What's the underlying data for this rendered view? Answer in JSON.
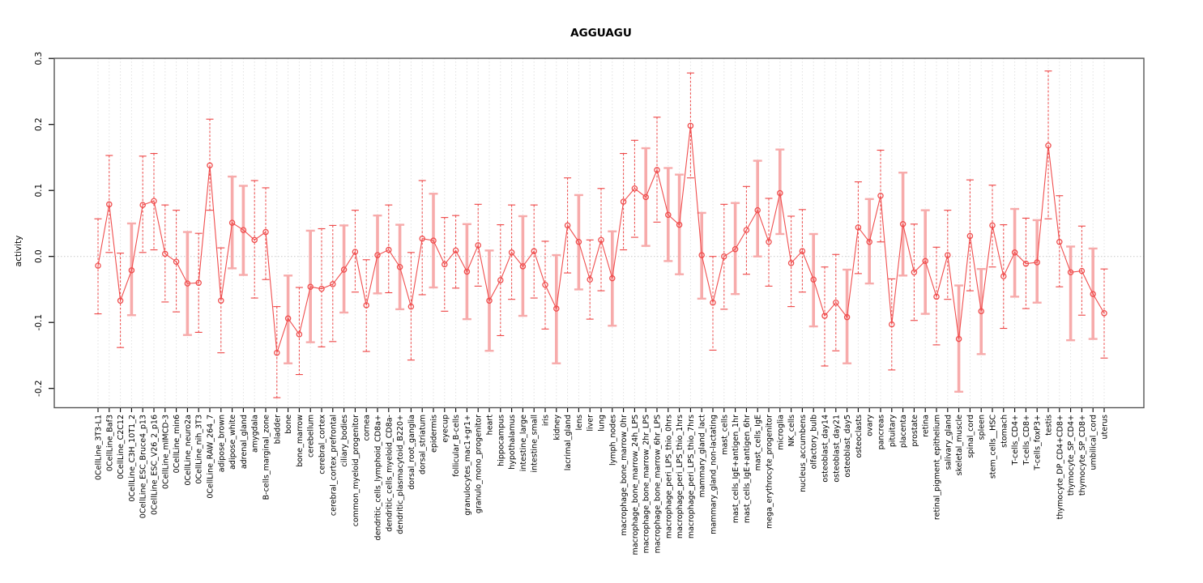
{
  "figure": {
    "title": "AGGUAGU",
    "ylabel": "activity"
  },
  "chart_data": {
    "type": "scatter",
    "subtype": "points-with-error-bars",
    "title": "AGGUAGU",
    "xlabel": "",
    "ylabel": "activity",
    "ylim": [
      -0.227,
      0.302
    ],
    "yticks": [
      0.3,
      0.2,
      0.1,
      0.0,
      -0.1,
      -0.2
    ],
    "ytick_labels": [
      "0.3",
      "0.2",
      "0.1",
      "0.0",
      "-0.1",
      "-0.2"
    ],
    "grid": "vertical dotted gridline at every category; dotted horizontal zero line",
    "legend_position": "none",
    "colors": {
      "point": "#f04e4e",
      "line": "#f04e4e",
      "errorbar_thin": "#ee4444",
      "errorbar_thick": "#f7abab",
      "gridline": "#e2e2e2",
      "zero_line": "#c8c8c8",
      "axis_box": "#555555",
      "text": "#000000"
    },
    "categories": [
      "0CellLine_3T3-L1",
      "0CellLine_Baf3",
      "0CellLine_C2C12",
      "0CellLine_C3H_10T1_2",
      "0CellLine_ESC_Bruce4_p13",
      "0CellLine_ESC_V26_2_p16",
      "0CellLine_mIMCD-3",
      "0CellLine_min6",
      "0CellLine_neuro2a",
      "0CellLine_nih_3T3",
      "0CellLine_RAW_264_7",
      "adipose_brown",
      "adipose_white",
      "adrenal_gland",
      "amygdala",
      "B-cells_marginal_zone",
      "bladder",
      "bone",
      "bone_marrow",
      "cerebellum",
      "cerebral_cortex",
      "cerebral_cortex_prefrontal",
      "ciliary_bodies",
      "common_myeloid_progenitor",
      "cornea",
      "dendritic_cells_lymphoid_CD8a+",
      "dendritic_cells_myeloid_CD8a-",
      "dendritic_plasmacytoid_B220+",
      "dorsal_root_ganglia",
      "dorsal_striatum",
      "epidermis",
      "eyecup",
      "follicular_B-cells",
      "granulocytes_mac1+gr1+",
      "granulo_mono_progenitor",
      "heart",
      "hippocampus",
      "hypothalamus",
      "intestine_large",
      "intestine_small",
      "iris",
      "kidney",
      "lacrimal_gland",
      "lens",
      "liver",
      "lung",
      "lymph_nodes",
      "macrophage_bone_marrow_0hr",
      "macrophage_bone_marrow_24h_LPS",
      "macrophage_bone_marrow_2hr_LPS",
      "macrophage_bone_marrow_6hr_LPS",
      "macrophage_peri_LPS_thio_0hrs",
      "macrophage_peri_LPS_thio_1hrs",
      "macrophage_peri_LPS_thio_7hrs",
      "mammary_gland_lact",
      "mammary_gland_non-lactating",
      "mast_cells",
      "mast_cells_IgE+antigen_1hr",
      "mast_cells_IgE+antigen_6hr",
      "mast_cells_IgE",
      "mega_erythrocyte_progenitor",
      "microglia",
      "NK_cells",
      "nucleus_accumbens",
      "olfactory_bulb",
      "osteoblast_day14",
      "osteoblast_day21",
      "osteoblast_day5",
      "osteoclasts",
      "ovary",
      "pancreas",
      "pituitary",
      "placenta",
      "prostate",
      "retina",
      "retinal_pigment_epithelium",
      "salivary_gland",
      "skeletal_muscle",
      "spinal_cord",
      "spleen",
      "stem_cells__HSC",
      "stomach",
      "T-cells_CD4+",
      "T-cells_CD8+",
      "T-cells_foxP3+",
      "testis",
      "thymocyte_DP_CD4+CD8+",
      "thymocyte_SP_CD4+",
      "thymocyte_SP_CD8+",
      "umbilical_cord",
      "uterus"
    ],
    "series": [
      {
        "name": "activity",
        "values": [
          -0.014,
          0.079,
          -0.067,
          -0.021,
          0.078,
          0.084,
          0.004,
          -0.008,
          -0.041,
          -0.04,
          0.138,
          -0.067,
          0.051,
          0.04,
          0.025,
          0.037,
          -0.146,
          -0.094,
          -0.118,
          -0.046,
          -0.049,
          -0.042,
          -0.02,
          0.007,
          -0.074,
          0.002,
          0.01,
          -0.016,
          -0.076,
          0.027,
          0.024,
          -0.012,
          0.009,
          -0.023,
          0.017,
          -0.067,
          -0.036,
          0.006,
          -0.015,
          0.008,
          -0.043,
          -0.079,
          0.047,
          0.022,
          -0.035,
          0.025,
          -0.033,
          0.083,
          0.103,
          0.09,
          0.131,
          0.063,
          0.048,
          0.198,
          0.002,
          -0.07,
          0.0,
          0.011,
          0.04,
          0.07,
          0.022,
          0.096,
          -0.01,
          0.008,
          -0.035,
          -0.09,
          -0.07,
          -0.092,
          0.044,
          0.022,
          0.092,
          -0.103,
          0.049,
          -0.024,
          -0.007,
          -0.061,
          0.002,
          -0.125,
          0.031,
          -0.083,
          0.047,
          -0.03,
          0.006,
          -0.011,
          -0.009,
          0.168,
          0.022,
          -0.024,
          -0.022,
          -0.057,
          -0.086
        ],
        "upper": [
          0.057,
          0.153,
          0.005,
          0.05,
          0.152,
          0.156,
          0.078,
          0.07,
          0.037,
          0.035,
          0.208,
          0.013,
          0.121,
          0.107,
          0.115,
          0.104,
          -0.076,
          -0.029,
          -0.047,
          0.039,
          0.042,
          0.047,
          0.047,
          0.07,
          -0.005,
          0.062,
          0.078,
          0.048,
          0.006,
          0.115,
          0.095,
          0.059,
          0.062,
          0.049,
          0.079,
          0.009,
          0.048,
          0.078,
          0.061,
          0.078,
          0.023,
          0.002,
          0.119,
          0.093,
          0.025,
          0.103,
          0.038,
          0.156,
          0.176,
          0.164,
          0.211,
          0.134,
          0.124,
          0.278,
          0.066,
          0.0,
          0.079,
          0.081,
          0.106,
          0.145,
          0.088,
          0.162,
          0.061,
          0.071,
          0.034,
          -0.016,
          0.003,
          -0.02,
          0.113,
          0.087,
          0.161,
          -0.034,
          0.127,
          0.049,
          0.07,
          0.014,
          0.07,
          -0.044,
          0.116,
          -0.019,
          0.108,
          0.048,
          0.072,
          0.058,
          0.055,
          0.281,
          0.092,
          0.015,
          0.046,
          0.012,
          -0.019
        ],
        "lower": [
          -0.087,
          0.006,
          -0.138,
          -0.089,
          0.006,
          0.01,
          -0.069,
          -0.084,
          -0.119,
          -0.115,
          0.07,
          -0.146,
          -0.018,
          -0.028,
          -0.063,
          -0.035,
          -0.214,
          -0.162,
          -0.179,
          -0.13,
          -0.137,
          -0.129,
          -0.085,
          -0.054,
          -0.144,
          -0.056,
          -0.055,
          -0.08,
          -0.157,
          -0.058,
          -0.047,
          -0.083,
          -0.048,
          -0.095,
          -0.045,
          -0.143,
          -0.12,
          -0.065,
          -0.09,
          -0.063,
          -0.11,
          -0.162,
          -0.025,
          -0.05,
          -0.095,
          -0.052,
          -0.105,
          0.01,
          0.029,
          0.016,
          0.052,
          -0.007,
          -0.027,
          0.119,
          -0.064,
          -0.142,
          -0.08,
          -0.057,
          -0.027,
          0.0,
          -0.045,
          0.034,
          -0.076,
          -0.054,
          -0.106,
          -0.166,
          -0.143,
          -0.162,
          -0.026,
          -0.041,
          0.022,
          -0.172,
          -0.029,
          -0.097,
          -0.087,
          -0.134,
          -0.065,
          -0.205,
          -0.052,
          -0.148,
          -0.016,
          -0.109,
          -0.061,
          -0.079,
          -0.07,
          0.057,
          -0.046,
          -0.127,
          -0.089,
          -0.125,
          -0.154
        ],
        "bar_style": [
          0,
          0,
          0,
          1,
          0,
          0,
          0,
          0,
          1,
          0,
          0,
          0,
          1,
          1,
          0,
          0,
          0,
          1,
          0,
          1,
          0,
          0,
          1,
          0,
          0,
          1,
          0,
          1,
          0,
          0,
          1,
          0,
          0,
          1,
          0,
          1,
          0,
          0,
          1,
          0,
          0,
          1,
          0,
          1,
          0,
          0,
          1,
          0,
          0,
          1,
          0,
          1,
          1,
          0,
          1,
          0,
          0,
          1,
          0,
          1,
          0,
          1,
          0,
          0,
          1,
          0,
          0,
          1,
          0,
          1,
          0,
          0,
          1,
          0,
          1,
          0,
          0,
          1,
          0,
          1,
          0,
          0,
          1,
          0,
          1,
          0,
          0,
          1,
          0,
          1,
          0
        ]
      }
    ]
  }
}
